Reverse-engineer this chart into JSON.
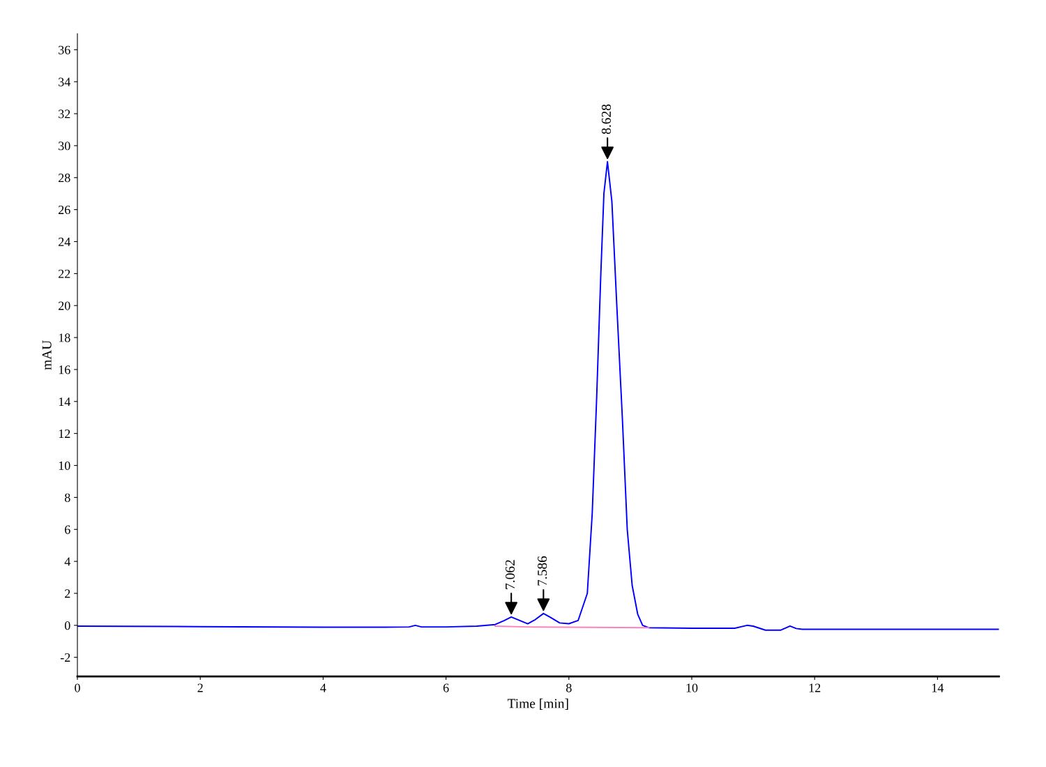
{
  "chart_data": {
    "type": "line",
    "xlabel": "Time [min]",
    "ylabel": "mAU",
    "xlim": [
      0,
      15
    ],
    "ylim": [
      -3.2,
      37
    ],
    "xticks": [
      0,
      2,
      4,
      6,
      8,
      10,
      12,
      14
    ],
    "yticks": [
      -2,
      0,
      2,
      4,
      6,
      8,
      10,
      12,
      14,
      16,
      18,
      20,
      22,
      24,
      26,
      28,
      30,
      32,
      34,
      36
    ],
    "grid": false,
    "legend": false,
    "marker": "none",
    "line_style": "solid",
    "series": [
      {
        "color": "#0000ff",
        "x": [
          0,
          2,
          4,
          5,
          5.4,
          5.5,
          5.6,
          6,
          6.5,
          6.8,
          6.95,
          7.062,
          7.2,
          7.33,
          7.45,
          7.586,
          7.7,
          7.85,
          8.0,
          8.15,
          8.3,
          8.38,
          8.45,
          8.52,
          8.57,
          8.628,
          8.7,
          8.78,
          8.87,
          8.95,
          9.03,
          9.12,
          9.2,
          9.3,
          10,
          10.7,
          10.9,
          11.0,
          11.2,
          11.45,
          11.6,
          11.7,
          11.8,
          13,
          15
        ],
        "values": [
          -0.05,
          -0.08,
          -0.12,
          -0.12,
          -0.1,
          0.0,
          -0.1,
          -0.1,
          -0.05,
          0.05,
          0.3,
          0.52,
          0.3,
          0.1,
          0.35,
          0.74,
          0.5,
          0.15,
          0.1,
          0.3,
          2,
          7,
          14,
          22,
          27,
          29,
          26.5,
          20,
          13,
          6,
          2.5,
          0.7,
          0.0,
          -0.15,
          -0.18,
          -0.18,
          0.0,
          -0.05,
          -0.3,
          -0.3,
          -0.05,
          -0.2,
          -0.25,
          -0.25,
          -0.25
        ]
      },
      {
        "color": "#ff80c0",
        "x": [
          6.8,
          7.33,
          7.95,
          9.3
        ],
        "values": [
          -0.05,
          -0.1,
          -0.12,
          -0.15
        ]
      }
    ],
    "annotations": [
      {
        "text": "7.062",
        "x": 7.062,
        "y": 0.52
      },
      {
        "text": "7.586",
        "x": 7.586,
        "y": 0.74
      },
      {
        "text": "8.628",
        "x": 8.628,
        "y": 29
      }
    ]
  }
}
